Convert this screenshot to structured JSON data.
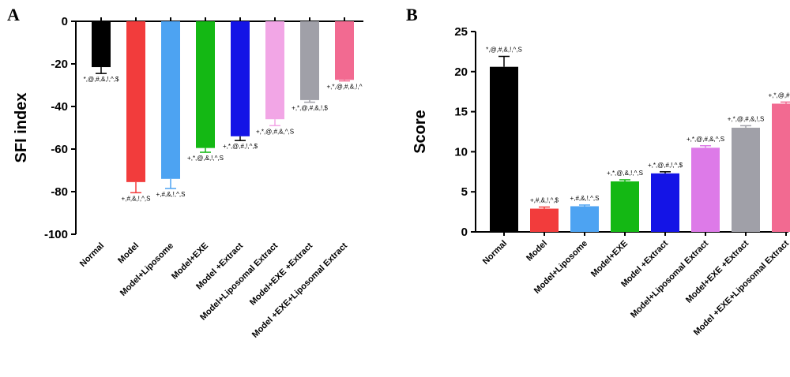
{
  "panels": {
    "a": "A",
    "b": "B"
  },
  "chart_data": [
    {
      "type": "bar",
      "panel": "A",
      "ylabel": "SFI index",
      "ylim": [
        -100,
        0
      ],
      "yticks": [
        0,
        -20,
        -40,
        -60,
        -80,
        -100
      ],
      "categories": [
        "Normal",
        "Model",
        "Model+Liposome",
        "Model+EXE",
        "Model +Extract",
        "Model+Liposomal Extract",
        "Model+EXE +Extract",
        "Model +EXE+Liposomal Extract"
      ],
      "values": [
        -21.5,
        -75.5,
        -74,
        -59.5,
        -54,
        -46,
        -37,
        -27.5
      ],
      "errors": [
        3,
        5,
        4.5,
        2,
        2,
        3,
        1,
        0.5
      ],
      "colors": [
        "#000000",
        "#f23c3c",
        "#4da3f2",
        "#14b814",
        "#1414e6",
        "#f2a6e6",
        "#a0a0a8",
        "#f26a91"
      ],
      "annotations": [
        "*,@,#,&,!,^,$",
        "+,#,&,!,^,S",
        "+,#,&,!,^,S",
        "+,*,@,&,!,^,S",
        "+,*,@,#,!,^,$",
        "+,*,@,#,&,^,S",
        "+,*,@,#,&,!,$",
        "+,*,@,#,&,!,^"
      ]
    },
    {
      "type": "bar",
      "panel": "B",
      "ylabel": "Score",
      "ylim": [
        0,
        25
      ],
      "yticks": [
        0,
        5,
        10,
        15,
        20,
        25
      ],
      "categories": [
        "Normal",
        "Model",
        "Model+Liposome",
        "Model+EXE",
        "Model +Extract",
        "Model+Liposomal Extract",
        "Model+EXE +Extract",
        "Model +EXE+Liposomal Extract"
      ],
      "values": [
        20.6,
        2.9,
        3.2,
        6.3,
        7.3,
        10.5,
        13.0,
        16.0
      ],
      "errors": [
        1.3,
        0.2,
        0.15,
        0.2,
        0.2,
        0.25,
        0.25,
        0.2
      ],
      "colors": [
        "#000000",
        "#f23c3c",
        "#4da3f2",
        "#14b814",
        "#1414e6",
        "#dd7ae8",
        "#a0a0a8",
        "#f26a91"
      ],
      "annotations": [
        "*,@,#,&,!,^,S",
        "+,#,&,!,^,$",
        "+,#,&,!,^,S",
        "+,*,@,&,!,^,S",
        "+,*,@,#,!,^,$",
        "+,*,@,#,&,^,S",
        "+,*,@,#,&,!,S",
        "+,*,@,#,&,!,^"
      ]
    }
  ]
}
